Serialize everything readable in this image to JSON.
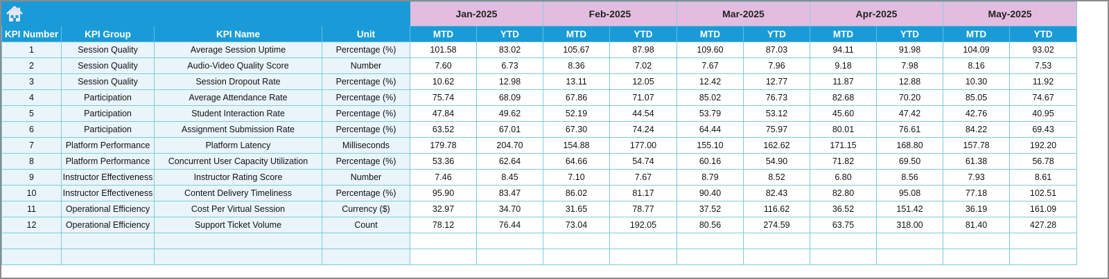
{
  "header": {
    "home_icon": "home-icon",
    "columns": [
      "KPI Number",
      "KPI Group",
      "KPI Name",
      "Unit"
    ],
    "months": [
      "Jan-2025",
      "Feb-2025",
      "Mar-2025",
      "Apr-2025",
      "May-2025"
    ],
    "sub_columns": [
      "MTD",
      "YTD"
    ]
  },
  "colors": {
    "header_blue": "#1a9bd7",
    "month_pink": "#e3bde0",
    "left_cells": "#e9f5fb",
    "grid": "#7ccbd9"
  },
  "rows": [
    {
      "num": "1",
      "group": "Session Quality",
      "name": "Average Session Uptime",
      "unit": "Percentage (%)",
      "values": [
        "101.58",
        "83.02",
        "105.67",
        "87.98",
        "109.60",
        "87.03",
        "94.11",
        "91.98",
        "104.09",
        "93.02"
      ]
    },
    {
      "num": "2",
      "group": "Session Quality",
      "name": "Audio-Video Quality Score",
      "unit": "Number",
      "values": [
        "7.60",
        "6.73",
        "8.36",
        "7.02",
        "7.67",
        "7.96",
        "9.18",
        "7.98",
        "8.16",
        "7.53"
      ]
    },
    {
      "num": "3",
      "group": "Session Quality",
      "name": "Session Dropout Rate",
      "unit": "Percentage (%)",
      "values": [
        "10.62",
        "12.98",
        "13.11",
        "12.05",
        "12.42",
        "12.77",
        "11.87",
        "12.88",
        "10.30",
        "11.92"
      ]
    },
    {
      "num": "4",
      "group": "Participation",
      "name": "Average Attendance Rate",
      "unit": "Percentage (%)",
      "values": [
        "75.74",
        "68.09",
        "67.86",
        "71.07",
        "85.02",
        "76.73",
        "82.68",
        "70.20",
        "85.05",
        "74.67"
      ]
    },
    {
      "num": "5",
      "group": "Participation",
      "name": "Student Interaction Rate",
      "unit": "Percentage (%)",
      "values": [
        "47.84",
        "49.62",
        "52.19",
        "44.54",
        "53.79",
        "53.12",
        "45.60",
        "47.42",
        "42.76",
        "40.95"
      ]
    },
    {
      "num": "6",
      "group": "Participation",
      "name": "Assignment Submission Rate",
      "unit": "Percentage (%)",
      "values": [
        "63.52",
        "67.01",
        "67.30",
        "74.24",
        "64.44",
        "75.97",
        "80.01",
        "76.61",
        "84.22",
        "69.43"
      ]
    },
    {
      "num": "7",
      "group": "Platform Performance",
      "name": "Platform Latency",
      "unit": "Milliseconds",
      "values": [
        "179.78",
        "204.70",
        "154.88",
        "177.00",
        "155.10",
        "162.62",
        "171.15",
        "168.80",
        "157.78",
        "192.20"
      ]
    },
    {
      "num": "8",
      "group": "Platform Performance",
      "name": "Concurrent User Capacity Utilization",
      "unit": "Percentage (%)",
      "values": [
        "53.36",
        "62.64",
        "64.66",
        "54.74",
        "60.16",
        "54.90",
        "71.82",
        "69.50",
        "61.38",
        "56.78"
      ]
    },
    {
      "num": "9",
      "group": "Instructor Effectiveness",
      "name": "Instructor Rating Score",
      "unit": "Number",
      "values": [
        "7.46",
        "8.45",
        "7.10",
        "7.67",
        "8.79",
        "8.52",
        "6.80",
        "8.56",
        "7.93",
        "8.61"
      ]
    },
    {
      "num": "10",
      "group": "Instructor Effectiveness",
      "name": "Content Delivery Timeliness",
      "unit": "Percentage (%)",
      "values": [
        "95.90",
        "83.47",
        "86.02",
        "81.17",
        "90.40",
        "82.43",
        "82.80",
        "95.08",
        "77.18",
        "102.51"
      ]
    },
    {
      "num": "11",
      "group": "Operational Efficiency",
      "name": "Cost Per Virtual Session",
      "unit": "Currency ($)",
      "values": [
        "32.97",
        "34.70",
        "31.65",
        "78.77",
        "37.52",
        "116.62",
        "36.52",
        "151.42",
        "36.19",
        "161.09"
      ]
    },
    {
      "num": "12",
      "group": "Operational Efficiency",
      "name": "Support Ticket Volume",
      "unit": "Count",
      "values": [
        "78.12",
        "76.44",
        "73.04",
        "192.05",
        "80.56",
        "274.59",
        "63.75",
        "318.00",
        "81.40",
        "427.28"
      ]
    }
  ],
  "empty_rows": 2
}
